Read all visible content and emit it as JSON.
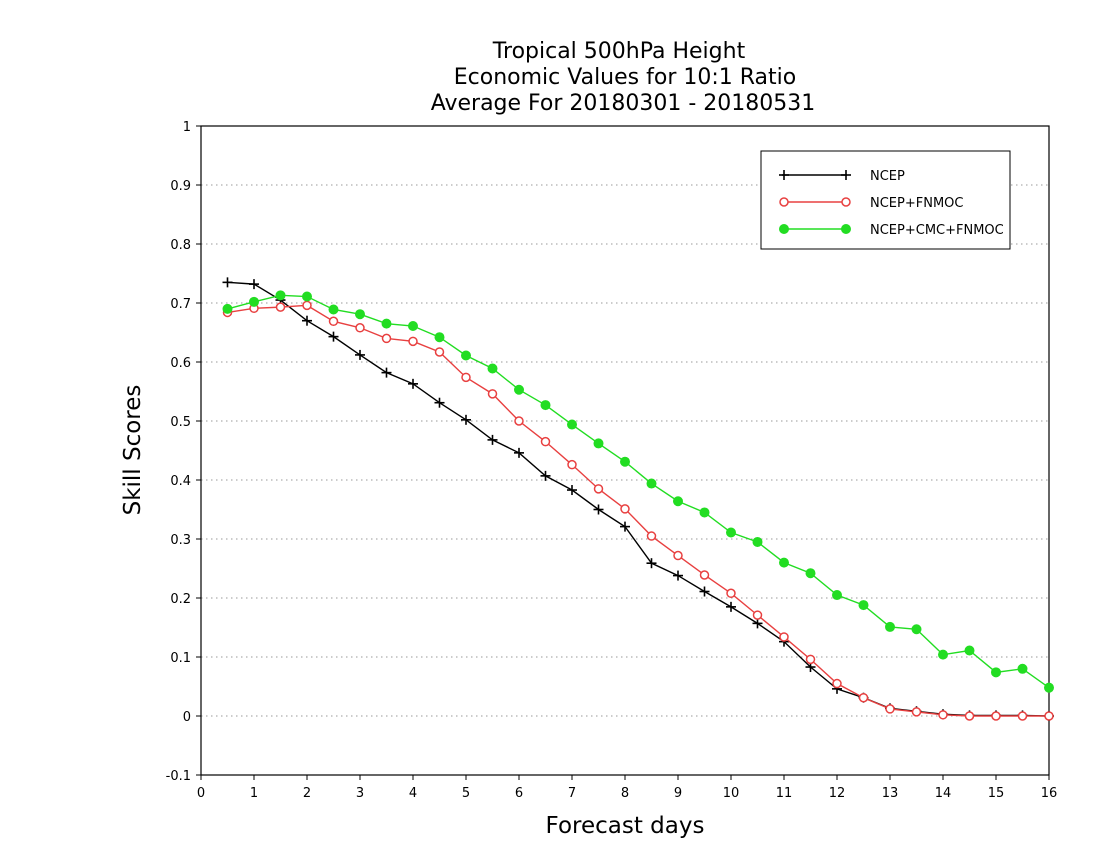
{
  "chart_data": {
    "type": "line",
    "title_lines": [
      "Tropical 500hPa Height",
      "Economic Values for 10:1 Ratio",
      "Average For 20180301 - 20180531"
    ],
    "xlabel": "Forecast days",
    "ylabel": "Skill Scores",
    "xlim": [
      0,
      16
    ],
    "ylim": [
      -0.1,
      1
    ],
    "x_ticks": [
      "0",
      "1",
      "2",
      "3",
      "4",
      "5",
      "6",
      "7",
      "8",
      "9",
      "10",
      "11",
      "12",
      "13",
      "14",
      "15",
      "16"
    ],
    "y_ticks": [
      "-0.1",
      "0",
      "0.1",
      "0.2",
      "0.3",
      "0.4",
      "0.5",
      "0.6",
      "0.7",
      "0.8",
      "0.9",
      "1"
    ],
    "grid": "horizontal dotted",
    "legend_position": "top-right",
    "x": [
      0.5,
      1,
      1.5,
      2,
      2.5,
      3,
      3.5,
      4,
      4.5,
      5,
      5.5,
      6,
      6.5,
      7,
      7.5,
      8,
      8.5,
      9,
      9.5,
      10,
      10.5,
      11,
      11.5,
      12,
      12.5,
      13,
      13.5,
      14,
      14.5,
      15,
      15.5,
      16
    ],
    "series": [
      {
        "name": "NCEP",
        "color": "#000000",
        "marker": "plus",
        "values": [
          0.735,
          0.732,
          0.705,
          0.67,
          0.643,
          0.612,
          0.582,
          0.563,
          0.531,
          0.502,
          0.468,
          0.446,
          0.407,
          0.383,
          0.35,
          0.321,
          0.259,
          0.238,
          0.211,
          0.185,
          0.157,
          0.126,
          0.083,
          0.046,
          0.031,
          0.013,
          0.008,
          0.003,
          0.001,
          0.001,
          0.001,
          0.0
        ]
      },
      {
        "name": "NCEP+FNMOC",
        "color": "#e84040",
        "marker": "open-circle",
        "values": [
          0.684,
          0.691,
          0.693,
          0.696,
          0.669,
          0.658,
          0.64,
          0.635,
          0.617,
          0.574,
          0.546,
          0.5,
          0.465,
          0.426,
          0.385,
          0.351,
          0.305,
          0.272,
          0.239,
          0.208,
          0.171,
          0.134,
          0.096,
          0.055,
          0.031,
          0.012,
          0.007,
          0.002,
          0.0,
          0.0,
          0.0,
          0.0
        ]
      },
      {
        "name": "NCEP+CMC+FNMOC",
        "color": "#22dd22",
        "marker": "filled-circle",
        "values": [
          0.69,
          0.702,
          0.713,
          0.711,
          0.689,
          0.681,
          0.665,
          0.661,
          0.642,
          0.611,
          0.589,
          0.553,
          0.527,
          0.494,
          0.462,
          0.431,
          0.394,
          0.364,
          0.345,
          0.311,
          0.295,
          0.26,
          0.242,
          0.205,
          0.188,
          0.151,
          0.147,
          0.104,
          0.111,
          0.074,
          0.08,
          0.048
        ]
      }
    ]
  }
}
